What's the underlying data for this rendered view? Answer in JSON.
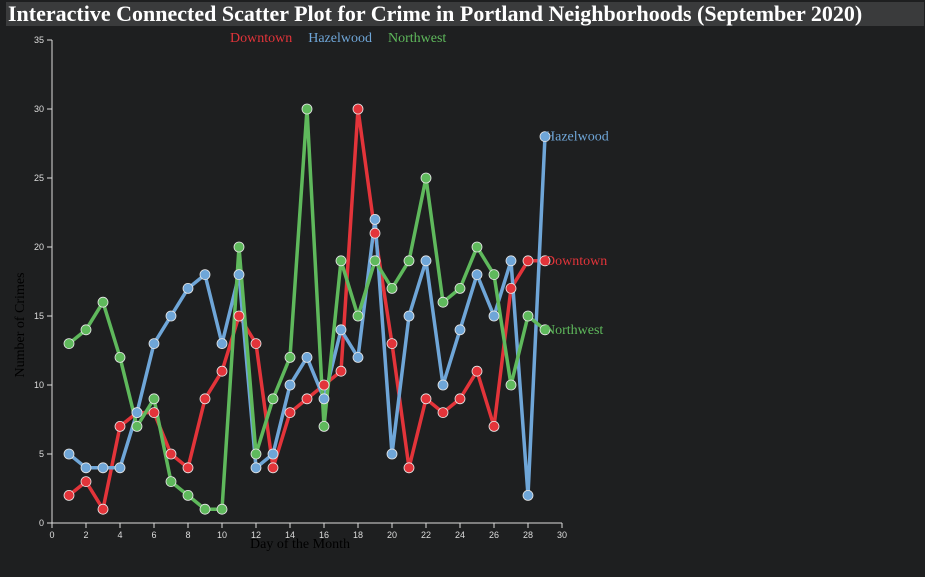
{
  "chart_data": {
    "type": "line",
    "title": "Interactive Connected Scatter Plot for Crime in Portland Neighborhoods (September 2020)",
    "x_label": "Day of the Month",
    "y_label": "Number of Crimes",
    "x": [
      1,
      2,
      3,
      4,
      5,
      6,
      7,
      8,
      9,
      10,
      11,
      12,
      13,
      14,
      15,
      16,
      17,
      18,
      19,
      20,
      21,
      22,
      23,
      24,
      25,
      26,
      27,
      28,
      29
    ],
    "series": [
      {
        "name": "Downtown",
        "color": "#e3343a",
        "values": [
          2,
          3,
          1,
          7,
          8,
          8,
          5,
          4,
          9,
          11,
          15,
          13,
          4,
          8,
          9,
          10,
          11,
          30,
          21,
          13,
          4,
          9,
          8,
          9,
          11,
          7,
          17,
          19,
          19
        ]
      },
      {
        "name": "Hazelwood",
        "color": "#6fa6d8",
        "values": [
          5,
          4,
          4,
          4,
          8,
          13,
          15,
          17,
          18,
          13,
          18,
          4,
          5,
          10,
          12,
          9,
          14,
          12,
          22,
          5,
          15,
          19,
          10,
          14,
          18,
          15,
          19,
          2,
          28
        ]
      },
      {
        "name": "Northwest",
        "color": "#5fb95c",
        "values": [
          13,
          14,
          16,
          12,
          7,
          9,
          3,
          2,
          1,
          1,
          20,
          5,
          9,
          12,
          30,
          7,
          19,
          15,
          19,
          17,
          19,
          25,
          16,
          17,
          20,
          18,
          10,
          15,
          14
        ]
      }
    ],
    "xlim": [
      0,
      30
    ],
    "xticks": [
      0,
      2,
      4,
      6,
      8,
      10,
      12,
      14,
      16,
      18,
      20,
      22,
      24,
      26,
      28,
      30
    ],
    "ylim": [
      0,
      35
    ],
    "yticks": [
      0,
      5,
      10,
      15,
      20,
      25,
      30,
      35
    ]
  }
}
